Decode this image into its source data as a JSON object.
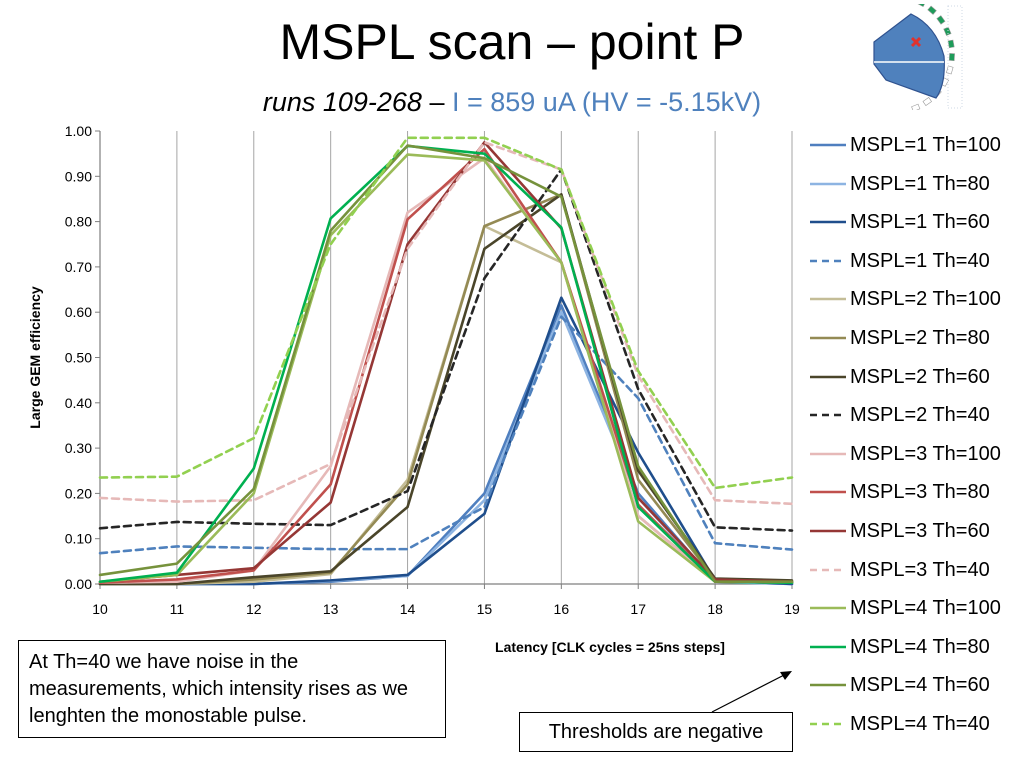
{
  "header": {
    "title": "MSPL scan – point P",
    "subtitle_runs": "runs 109-268",
    "subtitle_sep": " – ",
    "subtitle_current": "I = 859 uA (HV = -5.15kV)"
  },
  "notes": {
    "noise_note": "At Th=40 we have noise in the measurements, which intensity rises as we lenghten the monostable pulse.",
    "threshold_note": "Thresholds are negative"
  },
  "chart_data": {
    "type": "line",
    "xlabel": "Latency [CLK cycles = 25ns steps]",
    "ylabel": "Large GEM efficiency",
    "xlim": [
      10,
      19
    ],
    "ylim": [
      0,
      1
    ],
    "x_ticks": [
      "10",
      "11",
      "12",
      "13",
      "14",
      "15",
      "16",
      "17",
      "18",
      "19"
    ],
    "y_ticks": [
      "0.00",
      "0.10",
      "0.20",
      "0.30",
      "0.40",
      "0.50",
      "0.60",
      "0.70",
      "0.80",
      "0.90",
      "1.00"
    ],
    "grid": "vertical",
    "legend": "right",
    "x": [
      10,
      11,
      12,
      13,
      14,
      15,
      16,
      17,
      18,
      19
    ],
    "series": [
      {
        "name": "MSPL=1 Th=100",
        "color": "#4f7fbf",
        "dash": "solid",
        "values": [
          0.0,
          0.0,
          0.0,
          0.005,
          0.018,
          0.2,
          0.615,
          0.2,
          0.005,
          0.0
        ]
      },
      {
        "name": "MSPL=1 Th=80",
        "color": "#8db4e2",
        "dash": "solid",
        "values": [
          0.0,
          0.0,
          0.0,
          0.007,
          0.018,
          0.185,
          0.6,
          0.19,
          0.005,
          0.0
        ]
      },
      {
        "name": "MSPL=1 Th=60",
        "color": "#1f4e8c",
        "dash": "solid",
        "values": [
          0.0,
          0.0,
          0.0,
          0.008,
          0.02,
          0.155,
          0.632,
          0.29,
          0.008,
          0.0
        ]
      },
      {
        "name": "MSPL=1 Th=40",
        "color": "#4f81bd",
        "dash": "dash",
        "values": [
          0.068,
          0.083,
          0.08,
          0.077,
          0.077,
          0.17,
          0.59,
          0.41,
          0.09,
          0.076
        ]
      },
      {
        "name": "MSPL=2 Th=100",
        "color": "#c4bd97",
        "dash": "solid",
        "values": [
          0.0,
          0.0,
          0.005,
          0.022,
          0.23,
          0.79,
          0.71,
          0.15,
          0.008,
          0.005
        ]
      },
      {
        "name": "MSPL=2 Th=80",
        "color": "#948a54",
        "dash": "solid",
        "values": [
          0.0,
          0.0,
          0.01,
          0.025,
          0.22,
          0.79,
          0.86,
          0.23,
          0.01,
          0.005
        ]
      },
      {
        "name": "MSPL=2 Th=60",
        "color": "#4a452a",
        "dash": "solid",
        "values": [
          0.0,
          0.0,
          0.015,
          0.028,
          0.17,
          0.74,
          0.86,
          0.25,
          0.012,
          0.008
        ]
      },
      {
        "name": "MSPL=2 Th=40",
        "color": "#262626",
        "dash": "dash",
        "values": [
          0.123,
          0.137,
          0.133,
          0.13,
          0.205,
          0.675,
          0.915,
          0.43,
          0.125,
          0.118
        ]
      },
      {
        "name": "MSPL=3 Th=100",
        "color": "#e6b9b8",
        "dash": "solid",
        "values": [
          0.003,
          0.005,
          0.03,
          0.26,
          0.82,
          0.94,
          0.71,
          0.15,
          0.005,
          0.003
        ]
      },
      {
        "name": "MSPL=3 Th=80",
        "color": "#c0504d",
        "dash": "solid",
        "values": [
          0.003,
          0.01,
          0.03,
          0.22,
          0.805,
          0.96,
          0.71,
          0.175,
          0.005,
          0.003
        ]
      },
      {
        "name": "MSPL=3 Th=60",
        "color": "#953735",
        "dash": "solid",
        "values": [
          0.005,
          0.02,
          0.035,
          0.18,
          0.75,
          0.975,
          0.785,
          0.19,
          0.01,
          0.005
        ]
      },
      {
        "name": "MSPL=3 Th=40",
        "color": "#e6b9b8",
        "dash": "dash",
        "values": [
          0.19,
          0.182,
          0.185,
          0.265,
          0.74,
          0.975,
          0.915,
          0.46,
          0.185,
          0.177
        ]
      },
      {
        "name": "MSPL=4 Th=100",
        "color": "#9bbb59",
        "dash": "solid",
        "values": [
          0.005,
          0.02,
          0.2,
          0.77,
          0.948,
          0.935,
          0.71,
          0.138,
          0.005,
          0.003
        ]
      },
      {
        "name": "MSPL=4 Th=80",
        "color": "#00b050",
        "dash": "solid",
        "values": [
          0.005,
          0.025,
          0.255,
          0.807,
          0.967,
          0.95,
          0.787,
          0.17,
          0.005,
          0.003
        ]
      },
      {
        "name": "MSPL=4 Th=60",
        "color": "#76923c",
        "dash": "solid",
        "values": [
          0.02,
          0.045,
          0.21,
          0.78,
          0.968,
          0.94,
          0.855,
          0.26,
          0.005,
          0.005
        ]
      },
      {
        "name": "MSPL=4 Th=40",
        "color": "#92d050",
        "dash": "dash",
        "values": [
          0.235,
          0.237,
          0.322,
          0.75,
          0.985,
          0.985,
          0.915,
          0.47,
          0.212,
          0.235
        ]
      }
    ]
  },
  "detector_icon": {
    "fill": "#4f81bd",
    "segment_color": "#1e9c5a",
    "marker_color": "#e0322c"
  }
}
